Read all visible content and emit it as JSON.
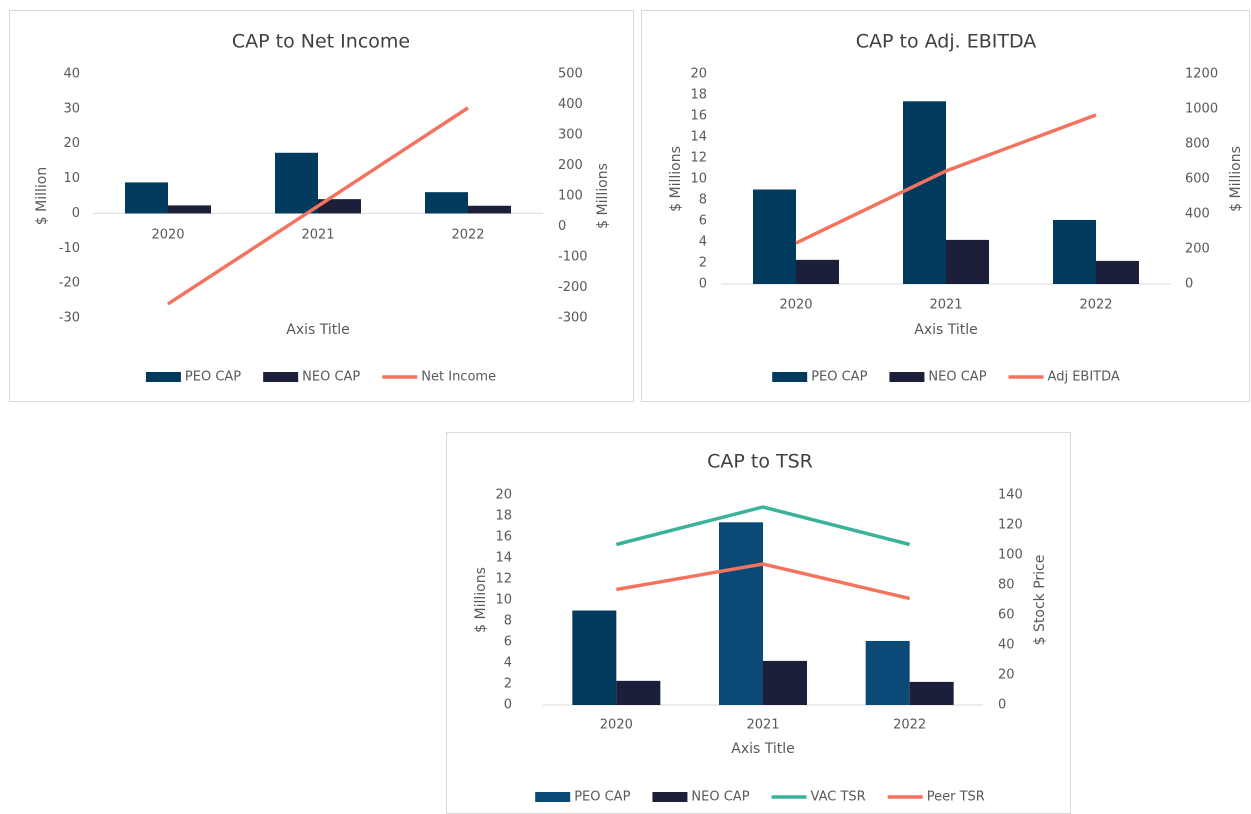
{
  "chart_data": [
    {
      "type": "bar",
      "title": "CAP to Net Income",
      "x_label": "Axis Title",
      "y_label": "$ Million",
      "y2_label": "$ Millions",
      "categories": [
        "2020",
        "2021",
        "2022"
      ],
      "ylim": [
        -30,
        40
      ],
      "yticks": [
        -30,
        -20,
        -10,
        0,
        10,
        20,
        30,
        40
      ],
      "y2lim": [
        -300,
        500
      ],
      "y2ticks": [
        -300,
        -200,
        -100,
        0,
        100,
        200,
        300,
        400,
        500
      ],
      "grid": false,
      "legend": "bottom",
      "series": [
        {
          "name": "PEO CAP",
          "type": "bar",
          "color": "#003a5c",
          "values": [
            8.9,
            17.4,
            6.1
          ]
        },
        {
          "name": "NEO CAP",
          "type": "bar",
          "color": "#1c1f3a",
          "values": [
            2.3,
            4.1,
            2.2
          ]
        },
        {
          "name": "Net Income",
          "type": "line",
          "axis": "y2",
          "color": "#f4735f",
          "values": [
            -254,
            67,
            389
          ]
        }
      ]
    },
    {
      "type": "bar",
      "title": "CAP to Adj. EBITDA",
      "x_label": "Axis Title",
      "y_label": "$ Millions",
      "y2_label": "$ Millions",
      "categories": [
        "2020",
        "2021",
        "2022"
      ],
      "ylim": [
        0,
        20
      ],
      "yticks": [
        0,
        2,
        4,
        6,
        8,
        10,
        12,
        14,
        16,
        18,
        20
      ],
      "y2lim": [
        0,
        1200
      ],
      "y2ticks": [
        0,
        200,
        400,
        600,
        800,
        1000,
        1200
      ],
      "grid": false,
      "legend": "bottom",
      "series": [
        {
          "name": "PEO CAP",
          "type": "bar",
          "color": "#003a5c",
          "values": [
            9.0,
            17.4,
            6.1
          ]
        },
        {
          "name": "NEO CAP",
          "type": "bar",
          "color": "#1c1f3a",
          "values": [
            2.3,
            4.2,
            2.2
          ]
        },
        {
          "name": "Adj EBITDA",
          "type": "line",
          "axis": "y2",
          "color": "#f4735f",
          "values": [
            234,
            646,
            966
          ]
        }
      ]
    },
    {
      "type": "bar",
      "title": "CAP to TSR",
      "x_label": "Axis Title",
      "y_label": "$ Millions",
      "y2_label": "$ Stock Price",
      "categories": [
        "2020",
        "2021",
        "2022"
      ],
      "ylim": [
        0,
        20
      ],
      "yticks": [
        0,
        2,
        4,
        6,
        8,
        10,
        12,
        14,
        16,
        18,
        20
      ],
      "y2lim": [
        0,
        140
      ],
      "y2ticks": [
        0,
        20,
        40,
        60,
        80,
        100,
        120,
        140
      ],
      "grid": false,
      "legend": "bottom",
      "series": [
        {
          "name": "PEO CAP",
          "type": "bar",
          "color": "#0b4a76",
          "colors": [
            "#003a5c",
            "#0b4a76",
            "#0b4a76"
          ],
          "values": [
            9.0,
            17.4,
            6.1
          ]
        },
        {
          "name": "NEO CAP",
          "type": "bar",
          "color": "#1c1f3a",
          "values": [
            2.3,
            4.2,
            2.2
          ]
        },
        {
          "name": "VAC TSR",
          "type": "line",
          "axis": "y2",
          "color": "#3ab39a",
          "values": [
            107,
            132,
            107
          ]
        },
        {
          "name": "Peer TSR",
          "type": "line",
          "axis": "y2",
          "color": "#f4735f",
          "values": [
            77,
            94,
            71
          ]
        }
      ]
    }
  ]
}
